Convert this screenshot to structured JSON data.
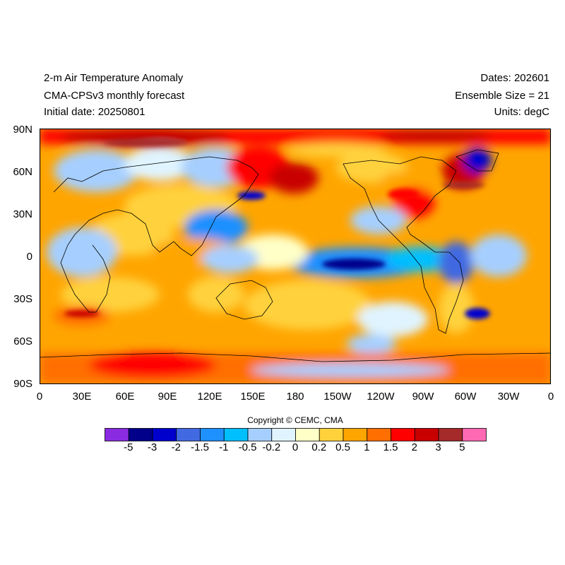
{
  "header": {
    "title": "2-m Air Temperature Anomaly",
    "model": "CMA-CPSv3 monthly forecast",
    "initial_date": "Initial date: 20250801",
    "dates": "Dates: 202601",
    "ensemble": "Ensemble Size = 21",
    "units": "Units: degC"
  },
  "axes": {
    "lat_ticks": [
      "90N",
      "60N",
      "30N",
      "0",
      "30S",
      "60S",
      "90S"
    ],
    "lon_ticks": [
      "0",
      "30E",
      "60E",
      "90E",
      "120E",
      "150E",
      "180",
      "150W",
      "120W",
      "90W",
      "60W",
      "30W",
      "0"
    ],
    "lat_range": [
      -90,
      90
    ],
    "lon_range": [
      0,
      360
    ]
  },
  "copyright": "Copyright © CEMC, CMA",
  "legend": {
    "labels": [
      "-5",
      "-3",
      "-2",
      "-1.5",
      "-1",
      "-0.5",
      "-0.2",
      "0",
      "0.2",
      "0.5",
      "1",
      "1.5",
      "2",
      "3",
      "5"
    ],
    "colors": [
      "#8a2be2",
      "#00008b",
      "#0000cd",
      "#4169e1",
      "#1e90ff",
      "#00bfff",
      "#a6cfff",
      "#e0f4ff",
      "#ffffc8",
      "#ffd23c",
      "#ffa500",
      "#ff6e00",
      "#ff0000",
      "#c80000",
      "#a52a2a",
      "#ff69b4"
    ]
  }
}
